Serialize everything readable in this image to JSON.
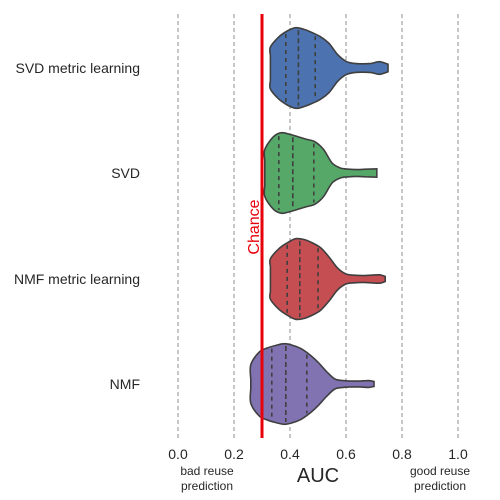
{
  "chart_data": {
    "type": "violin",
    "orientation": "horizontal",
    "xlabel": "AUC",
    "xlim": [
      -0.05,
      1.05
    ],
    "xticks": [
      "0.0",
      "0.2",
      "0.4",
      "0.6",
      "0.8",
      "1.0"
    ],
    "xtick_values": [
      0.0,
      0.2,
      0.4,
      0.6,
      0.8,
      1.0
    ],
    "grid": "vertical dashed",
    "left_note": [
      "bad reuse",
      "prediction"
    ],
    "right_note": [
      "good reuse",
      "prediction"
    ],
    "reference_line": {
      "x": 0.3,
      "label": "Chance",
      "color": "#e8000b"
    },
    "series": [
      {
        "name": "SVD metric learning",
        "color": "#4c72b0",
        "quartiles": [
          0.385,
          0.43,
          0.49
        ],
        "profile": [
          [
            0.33,
            0.3
          ],
          [
            0.33,
            0.5
          ],
          [
            0.36,
            0.74
          ],
          [
            0.39,
            0.88
          ],
          [
            0.42,
            0.96
          ],
          [
            0.45,
            0.92
          ],
          [
            0.48,
            0.84
          ],
          [
            0.51,
            0.74
          ],
          [
            0.54,
            0.58
          ],
          [
            0.57,
            0.32
          ],
          [
            0.6,
            0.16
          ],
          [
            0.63,
            0.11
          ],
          [
            0.66,
            0.1
          ],
          [
            0.69,
            0.11
          ],
          [
            0.72,
            0.15
          ],
          [
            0.75,
            0.09
          ]
        ]
      },
      {
        "name": "SVD",
        "color": "#55a868",
        "quartiles": [
          0.36,
          0.41,
          0.485
        ],
        "profile": [
          [
            0.31,
            0.3
          ],
          [
            0.31,
            0.56
          ],
          [
            0.34,
            0.86
          ],
          [
            0.37,
            0.96
          ],
          [
            0.4,
            0.92
          ],
          [
            0.43,
            0.86
          ],
          [
            0.46,
            0.8
          ],
          [
            0.49,
            0.74
          ],
          [
            0.52,
            0.56
          ],
          [
            0.55,
            0.24
          ],
          [
            0.58,
            0.12
          ],
          [
            0.61,
            0.09
          ],
          [
            0.64,
            0.08
          ],
          [
            0.67,
            0.09
          ],
          [
            0.71,
            0.1
          ]
        ]
      },
      {
        "name": "NMF metric learning",
        "color": "#c44e52",
        "quartiles": [
          0.39,
          0.435,
          0.5
        ],
        "profile": [
          [
            0.33,
            0.3
          ],
          [
            0.33,
            0.48
          ],
          [
            0.36,
            0.72
          ],
          [
            0.39,
            0.86
          ],
          [
            0.42,
            0.96
          ],
          [
            0.45,
            0.94
          ],
          [
            0.48,
            0.86
          ],
          [
            0.51,
            0.74
          ],
          [
            0.54,
            0.52
          ],
          [
            0.57,
            0.26
          ],
          [
            0.6,
            0.12
          ],
          [
            0.63,
            0.09
          ],
          [
            0.66,
            0.08
          ],
          [
            0.69,
            0.09
          ],
          [
            0.72,
            0.1
          ],
          [
            0.74,
            0.06
          ]
        ]
      },
      {
        "name": "NMF",
        "color": "#8172b2",
        "quartiles": [
          0.335,
          0.385,
          0.46
        ],
        "profile": [
          [
            0.26,
            0.1
          ],
          [
            0.26,
            0.46
          ],
          [
            0.29,
            0.76
          ],
          [
            0.32,
            0.86
          ],
          [
            0.35,
            0.92
          ],
          [
            0.38,
            0.96
          ],
          [
            0.41,
            0.92
          ],
          [
            0.44,
            0.84
          ],
          [
            0.47,
            0.7
          ],
          [
            0.5,
            0.52
          ],
          [
            0.53,
            0.3
          ],
          [
            0.56,
            0.12
          ],
          [
            0.59,
            0.08
          ],
          [
            0.62,
            0.07
          ],
          [
            0.65,
            0.07
          ],
          [
            0.68,
            0.08
          ],
          [
            0.7,
            0.06
          ]
        ]
      }
    ]
  }
}
